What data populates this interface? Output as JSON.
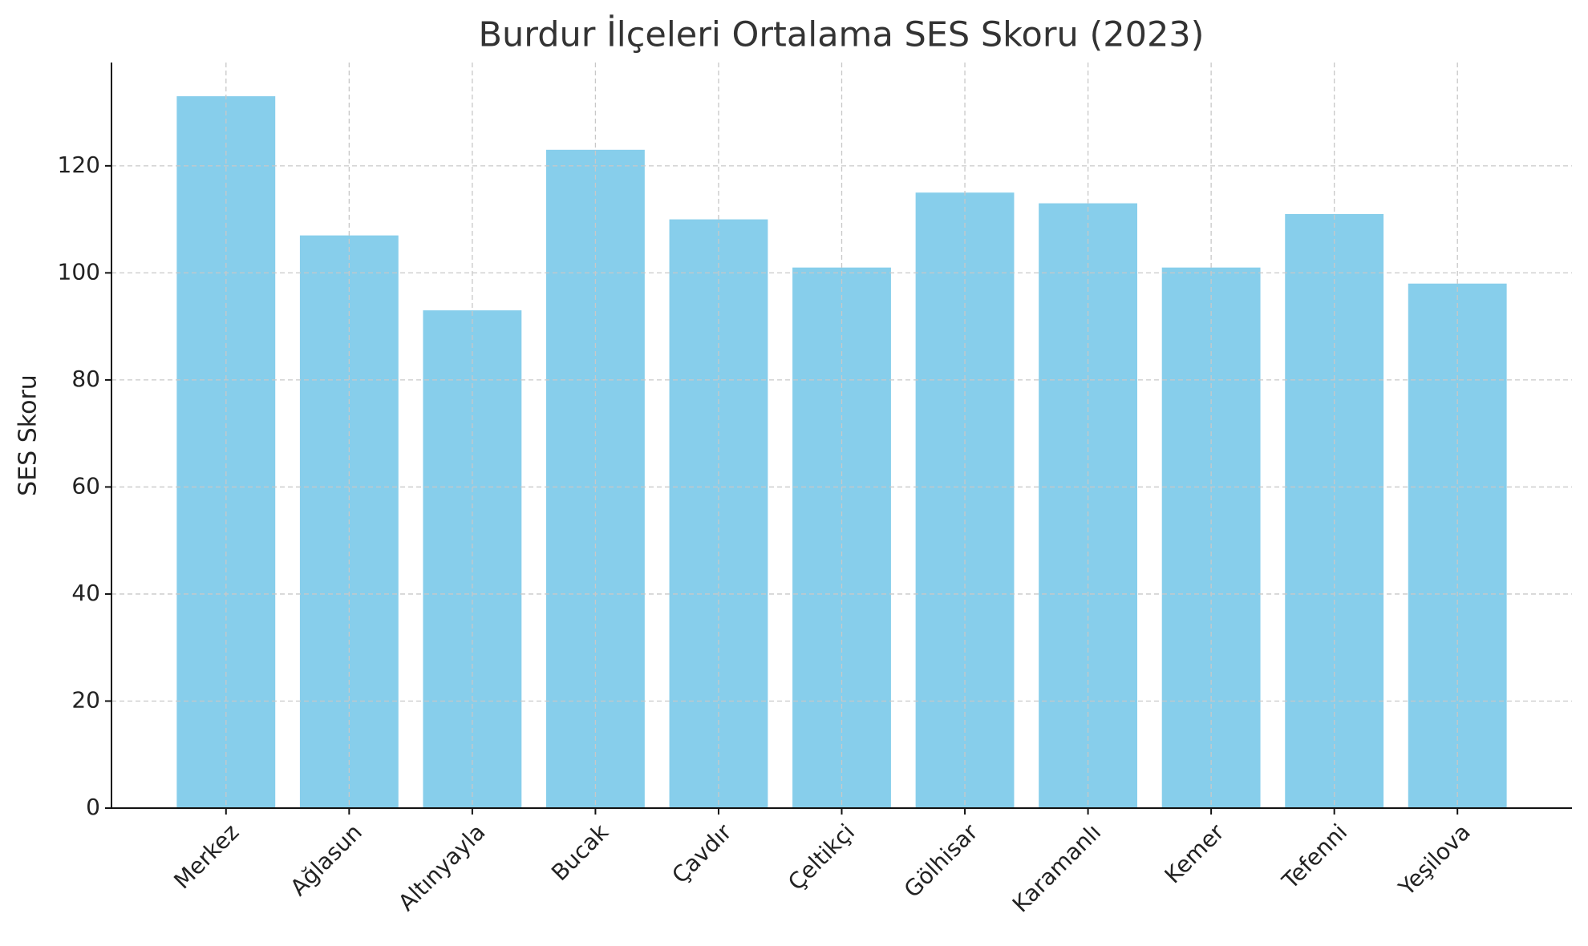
{
  "chart_data": {
    "type": "bar",
    "title": "Burdur İlçeleri Ortalama SES Skoru (2023)",
    "y_label": "SES Skoru",
    "categories": [
      "Merkez",
      "Ağlasun",
      "Altınyayla",
      "Bucak",
      "Çavdır",
      "Çeltikçi",
      "Gölhisar",
      "Karamanlı",
      "Kemer",
      "Tefenni",
      "Yeşilova"
    ],
    "values": [
      133,
      107,
      93,
      123,
      110,
      101,
      115,
      113,
      101,
      111,
      98
    ],
    "color": "#87ceeb",
    "ylim": [
      0,
      139.3
    ],
    "yticks": [
      0,
      20,
      40,
      60,
      80,
      100,
      120
    ],
    "grid": true
  }
}
